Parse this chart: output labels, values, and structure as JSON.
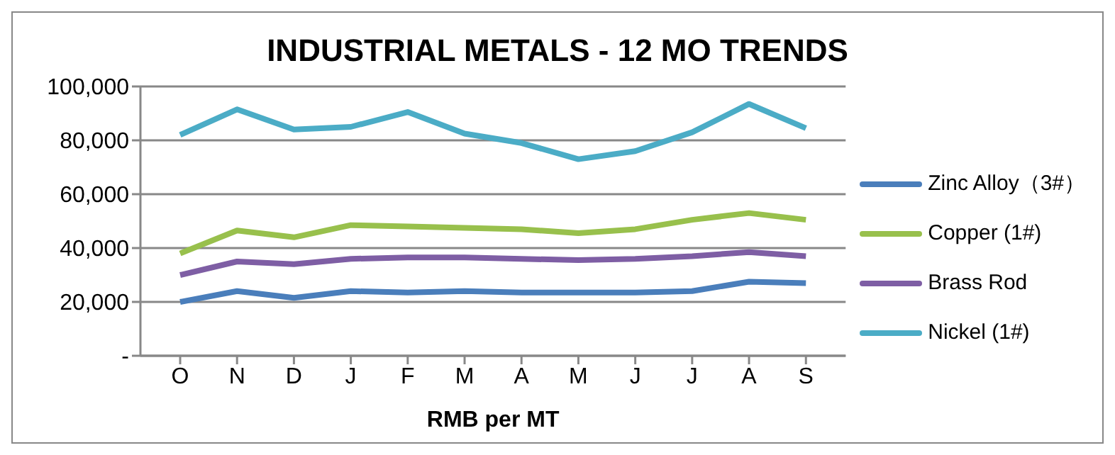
{
  "chart_data": {
    "type": "line",
    "title": "INDUSTRIAL METALS - 12 MO TRENDS",
    "xlabel": "RMB per MT",
    "categories": [
      "O",
      "N",
      "D",
      "J",
      "F",
      "M",
      "A",
      "M",
      "J",
      "J",
      "A",
      "S"
    ],
    "series": [
      {
        "name": "Zinc Alloy（3#）",
        "color": "#4a7ebb",
        "values": [
          20000,
          24000,
          21500,
          24000,
          23500,
          24000,
          23500,
          23500,
          23500,
          24000,
          27500,
          27000
        ]
      },
      {
        "name": "Copper (1#)",
        "color": "#98c04c",
        "values": [
          38000,
          46500,
          44000,
          48500,
          48000,
          47500,
          47000,
          45500,
          47000,
          50500,
          53000,
          50500
        ]
      },
      {
        "name": "Brass Rod",
        "color": "#7e5ea4",
        "values": [
          30000,
          35000,
          34000,
          36000,
          36500,
          36500,
          36000,
          35500,
          36000,
          37000,
          38500,
          37000
        ]
      },
      {
        "name": "Nickel (1#)",
        "color": "#4bacc6",
        "values": [
          82000,
          91500,
          84000,
          85000,
          90500,
          82500,
          79000,
          73000,
          76000,
          83000,
          93500,
          84500
        ]
      }
    ],
    "ylim": [
      0,
      100000
    ],
    "yticks": [
      {
        "value": 0,
        "label": "-"
      },
      {
        "value": 20000,
        "label": "20,000"
      },
      {
        "value": 40000,
        "label": "40,000"
      },
      {
        "value": 60000,
        "label": "60,000"
      },
      {
        "value": 80000,
        "label": "80,000"
      },
      {
        "value": 100000,
        "label": "100,000"
      }
    ],
    "grid": "y",
    "legend": "right",
    "marker": "none",
    "line_style": "solid"
  }
}
